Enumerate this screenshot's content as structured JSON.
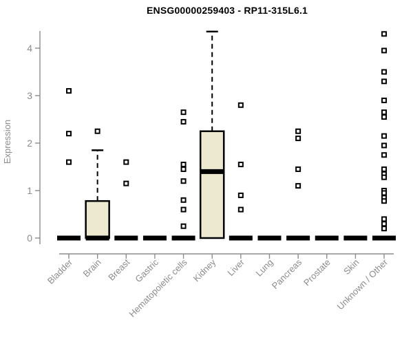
{
  "title": "ENSG00000259403 - RP11-315L6.1",
  "chart_data": {
    "type": "boxplot",
    "title": "ENSG00000259403 - RP11-315L6.1",
    "ylabel": "Expression",
    "xlabel": "",
    "ylim": [
      0,
      4.4
    ],
    "yticks": [
      0,
      1,
      2,
      3,
      4
    ],
    "grid": false,
    "legend": "none",
    "categories": [
      "Bladder",
      "Brain",
      "Breast",
      "Gastric",
      "Hematopoietic cells",
      "Kidney",
      "Liver",
      "Lung",
      "Pancreas",
      "Prostate",
      "Skin",
      "Unknown / Other"
    ],
    "boxes": [
      {
        "category": "Bladder",
        "q1": 0,
        "median": 0,
        "q3": 0,
        "whisker_low": 0,
        "whisker_high": 0,
        "outliers": [
          3.1,
          2.2,
          1.6
        ]
      },
      {
        "category": "Brain",
        "q1": 0,
        "median": 0,
        "q3": 0.78,
        "whisker_low": 0,
        "whisker_high": 1.85,
        "outliers": [
          2.25
        ]
      },
      {
        "category": "Breast",
        "q1": 0,
        "median": 0,
        "q3": 0,
        "whisker_low": 0,
        "whisker_high": 0,
        "outliers": [
          1.6,
          1.15
        ]
      },
      {
        "category": "Gastric",
        "q1": 0,
        "median": 0,
        "q3": 0,
        "whisker_low": 0,
        "whisker_high": 0,
        "outliers": []
      },
      {
        "category": "Hematopoietic cells",
        "q1": 0,
        "median": 0,
        "q3": 0,
        "whisker_low": 0,
        "whisker_high": 0,
        "outliers": [
          2.65,
          2.45,
          1.55,
          1.45,
          1.2,
          0.8,
          0.6,
          0.25
        ]
      },
      {
        "category": "Kidney",
        "q1": 0,
        "median": 1.4,
        "q3": 2.25,
        "whisker_low": 0,
        "whisker_high": 4.35,
        "outliers": []
      },
      {
        "category": "Liver",
        "q1": 0,
        "median": 0,
        "q3": 0,
        "whisker_low": 0,
        "whisker_high": 0,
        "outliers": [
          2.8,
          1.55,
          0.9,
          0.6
        ]
      },
      {
        "category": "Lung",
        "q1": 0,
        "median": 0,
        "q3": 0,
        "whisker_low": 0,
        "whisker_high": 0,
        "outliers": []
      },
      {
        "category": "Pancreas",
        "q1": 0,
        "median": 0,
        "q3": 0,
        "whisker_low": 0,
        "whisker_high": 0,
        "outliers": [
          2.25,
          2.1,
          1.45,
          1.1
        ]
      },
      {
        "category": "Prostate",
        "q1": 0,
        "median": 0,
        "q3": 0,
        "whisker_low": 0,
        "whisker_high": 0,
        "outliers": []
      },
      {
        "category": "Skin",
        "q1": 0,
        "median": 0,
        "q3": 0,
        "whisker_low": 0,
        "whisker_high": 0,
        "outliers": []
      },
      {
        "category": "Unknown / Other",
        "q1": 0,
        "median": 0,
        "q3": 0,
        "whisker_low": 0,
        "whisker_high": 0,
        "outliers": [
          4.3,
          3.95,
          3.5,
          3.3,
          2.9,
          2.65,
          2.55,
          2.15,
          1.95,
          1.75,
          1.45,
          1.35,
          1.28,
          1.0,
          0.95,
          0.85,
          0.78,
          0.4,
          0.3,
          0.2
        ]
      }
    ],
    "colors": {
      "box_fill": "#EDE8D0",
      "box_border": "#000000",
      "median": "#000000",
      "outlier_stroke": "#000000",
      "axis": "#8c8c8c",
      "tick_label": "#8c8c8c",
      "title": "#000000",
      "background": "#ffffff"
    }
  }
}
